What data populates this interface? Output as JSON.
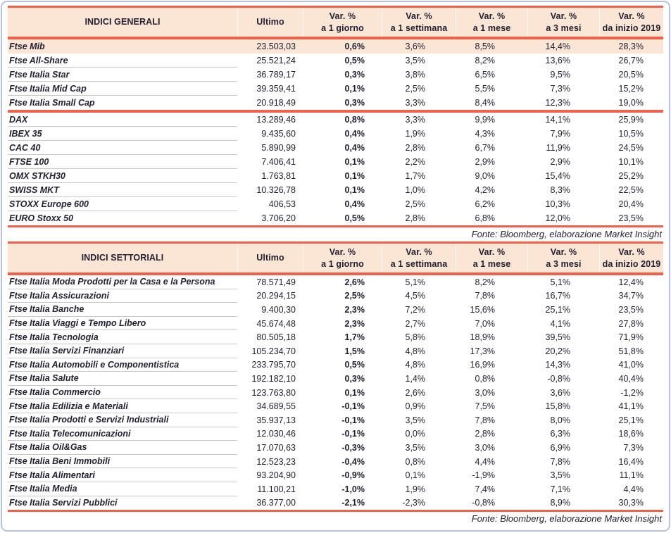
{
  "colors": {
    "accent_red": "#f1604b",
    "header_peach": "#fbe5d5",
    "panel_border_blue": "#b7c3e3",
    "text_navy": "#221f31",
    "row_divider_gray": "#c9c9c9"
  },
  "tables": [
    {
      "title": "INDICI GENERALI",
      "columns": [
        {
          "l1": "Ultimo",
          "l2": ""
        },
        {
          "l1": "Var. %",
          "l2": "a 1 giorno"
        },
        {
          "l1": "Var. %",
          "l2": "a 1 settimana"
        },
        {
          "l1": "Var. %",
          "l2": "a 1 mese"
        },
        {
          "l1": "Var. %",
          "l2": "a 3 mesi"
        },
        {
          "l1": "Var. %",
          "l2": "da inizio 2019"
        }
      ],
      "fonte": "Fonte: Bloomberg, elaborazione Market Insight",
      "sections": [
        [
          {
            "name": "Ftse Mib",
            "ultimo": "23.503,03",
            "g1": "0,6%",
            "s1": "3,6%",
            "m1": "8,5%",
            "m3": "14,4%",
            "ytd": "28,3%",
            "highlight": true
          },
          {
            "name": "Ftse All-Share",
            "ultimo": "25.521,24",
            "g1": "0,5%",
            "s1": "3,5%",
            "m1": "8,2%",
            "m3": "13,6%",
            "ytd": "26,7%"
          },
          {
            "name": "Ftse Italia Star",
            "ultimo": "36.789,17",
            "g1": "0,3%",
            "s1": "3,8%",
            "m1": "6,5%",
            "m3": "9,5%",
            "ytd": "20,5%"
          },
          {
            "name": "Ftse Italia Mid Cap",
            "ultimo": "39.359,41",
            "g1": "0,1%",
            "s1": "2,5%",
            "m1": "5,5%",
            "m3": "7,3%",
            "ytd": "15,2%"
          },
          {
            "name": "Ftse Italia Small Cap",
            "ultimo": "20.918,49",
            "g1": "0,3%",
            "s1": "3,3%",
            "m1": "8,4%",
            "m3": "12,3%",
            "ytd": "19,0%"
          }
        ],
        [
          {
            "name": "DAX",
            "ultimo": "13.289,46",
            "g1": "0,8%",
            "s1": "3,3%",
            "m1": "9,9%",
            "m3": "14,1%",
            "ytd": "25,9%"
          },
          {
            "name": "IBEX 35",
            "ultimo": "9.435,60",
            "g1": "0,4%",
            "s1": "1,9%",
            "m1": "4,3%",
            "m3": "7,9%",
            "ytd": "10,5%"
          },
          {
            "name": "CAC 40",
            "ultimo": "5.890,99",
            "g1": "0,4%",
            "s1": "2,8%",
            "m1": "6,7%",
            "m3": "11,9%",
            "ytd": "24,5%"
          },
          {
            "name": "FTSE 100",
            "ultimo": "7.406,41",
            "g1": "0,1%",
            "s1": "2,2%",
            "m1": "2,9%",
            "m3": "2,9%",
            "ytd": "10,1%"
          },
          {
            "name": "OMX STKH30",
            "ultimo": "1.763,81",
            "g1": "0,1%",
            "s1": "1,7%",
            "m1": "9,0%",
            "m3": "15,4%",
            "ytd": "25,2%"
          },
          {
            "name": "SWISS MKT",
            "ultimo": "10.326,78",
            "g1": "0,1%",
            "s1": "1,0%",
            "m1": "4,2%",
            "m3": "8,3%",
            "ytd": "22,5%"
          },
          {
            "name": "STOXX Europe 600",
            "ultimo": "406,53",
            "g1": "0,4%",
            "s1": "2,5%",
            "m1": "6,2%",
            "m3": "10,3%",
            "ytd": "20,4%"
          },
          {
            "name": "EURO Stoxx 50",
            "ultimo": "3.706,20",
            "g1": "0,5%",
            "s1": "2,8%",
            "m1": "6,8%",
            "m3": "12,0%",
            "ytd": "23,5%"
          }
        ]
      ]
    },
    {
      "title": "INDICI SETTORIALI",
      "columns": [
        {
          "l1": "Ultimo",
          "l2": ""
        },
        {
          "l1": "Var. %",
          "l2": "a 1 giorno"
        },
        {
          "l1": "Var. %",
          "l2": "a 1 settimana"
        },
        {
          "l1": "Var. %",
          "l2": "a 1 mese"
        },
        {
          "l1": "Var. %",
          "l2": "a 3 mesi"
        },
        {
          "l1": "Var. %",
          "l2": "da inizio 2019"
        }
      ],
      "fonte": "Fonte: Bloomberg, elaborazione Market Insight",
      "sections": [
        [
          {
            "name": "Ftse Italia Moda Prodotti per la Casa e la Persona",
            "ultimo": "78.571,49",
            "g1": "2,6%",
            "s1": "5,1%",
            "m1": "8,2%",
            "m3": "5,1%",
            "ytd": "12,4%"
          },
          {
            "name": "Ftse Italia Assicurazioni",
            "ultimo": "20.294,15",
            "g1": "2,5%",
            "s1": "4,5%",
            "m1": "7,8%",
            "m3": "16,7%",
            "ytd": "34,7%"
          },
          {
            "name": "Ftse Italia Banche",
            "ultimo": "9.400,30",
            "g1": "2,3%",
            "s1": "7,2%",
            "m1": "15,6%",
            "m3": "25,1%",
            "ytd": "23,5%"
          },
          {
            "name": "Ftse Italia Viaggi e Tempo Libero",
            "ultimo": "45.674,48",
            "g1": "2,3%",
            "s1": "2,7%",
            "m1": "7,0%",
            "m3": "4,1%",
            "ytd": "27,8%"
          },
          {
            "name": "Ftse Italia Tecnologia",
            "ultimo": "80.505,18",
            "g1": "1,7%",
            "s1": "5,8%",
            "m1": "18,9%",
            "m3": "39,5%",
            "ytd": "71,9%"
          },
          {
            "name": "Ftse Italia Servizi Finanziari",
            "ultimo": "105.234,70",
            "g1": "1,5%",
            "s1": "4,8%",
            "m1": "17,3%",
            "m3": "20,2%",
            "ytd": "51,8%"
          },
          {
            "name": "Ftse Italia Automobili e Componentistica",
            "ultimo": "233.795,70",
            "g1": "0,5%",
            "s1": "4,8%",
            "m1": "16,9%",
            "m3": "14,3%",
            "ytd": "41,0%"
          },
          {
            "name": "Ftse Italia Salute",
            "ultimo": "192.182,10",
            "g1": "0,3%",
            "s1": "1,4%",
            "m1": "0,8%",
            "m3": "-0,8%",
            "ytd": "40,4%"
          },
          {
            "name": "Ftse Italia Commercio",
            "ultimo": "123.763,80",
            "g1": "0,1%",
            "s1": "2,6%",
            "m1": "3,0%",
            "m3": "3,6%",
            "ytd": "-1,2%"
          },
          {
            "name": "Ftse Italia Edilizia e Materiali",
            "ultimo": "34.689,55",
            "g1": "-0,1%",
            "s1": "0,9%",
            "m1": "7,5%",
            "m3": "15,8%",
            "ytd": "41,1%"
          },
          {
            "name": "Ftse Italia Prodotti e Servizi Industriali",
            "ultimo": "35.937,13",
            "g1": "-0,1%",
            "s1": "3,5%",
            "m1": "7,8%",
            "m3": "8,0%",
            "ytd": "25,1%"
          },
          {
            "name": "Ftse Italia Telecomunicazioni",
            "ultimo": "12.030,46",
            "g1": "-0,1%",
            "s1": "0,0%",
            "m1": "2,8%",
            "m3": "6,3%",
            "ytd": "18,6%"
          },
          {
            "name": "Ftse Italia Oil&Gas",
            "ultimo": "17.070,63",
            "g1": "-0,3%",
            "s1": "3,5%",
            "m1": "3,0%",
            "m3": "6,9%",
            "ytd": "7,3%"
          },
          {
            "name": "Ftse Italia Beni Immobili",
            "ultimo": "12.523,23",
            "g1": "-0,4%",
            "s1": "0,8%",
            "m1": "4,4%",
            "m3": "7,8%",
            "ytd": "16,4%"
          },
          {
            "name": "Ftse Italia Alimentari",
            "ultimo": "93.204,90",
            "g1": "-0,9%",
            "s1": "0,1%",
            "m1": "-1,9%",
            "m3": "3,5%",
            "ytd": "11,1%"
          },
          {
            "name": "Ftse Italia Media",
            "ultimo": "11.100,21",
            "g1": "-1,0%",
            "s1": "1,9%",
            "m1": "7,4%",
            "m3": "7,1%",
            "ytd": "4,4%"
          },
          {
            "name": "Ftse Italia Servizi Pubblici",
            "ultimo": "36.377,00",
            "g1": "-2,1%",
            "s1": "-2,3%",
            "m1": "-0,8%",
            "m3": "8,9%",
            "ytd": "30,3%"
          }
        ]
      ]
    }
  ]
}
